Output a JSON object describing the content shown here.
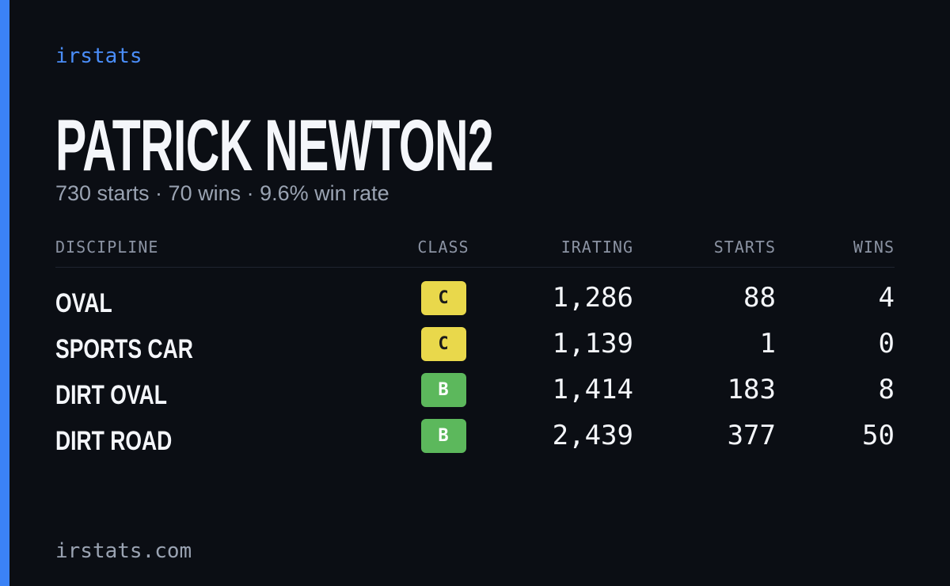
{
  "header": {
    "brand": "irstats",
    "title": "PATRICK NEWTON2",
    "subtitle": "730 starts · 70 wins · 9.6% win rate"
  },
  "table": {
    "columns": [
      "DISCIPLINE",
      "CLASS",
      "IRATING",
      "STARTS",
      "WINS"
    ],
    "rows": [
      [
        "OVAL",
        "C",
        "1,286",
        "88",
        "4"
      ],
      [
        "SPORTS CAR",
        "C",
        "1,139",
        "1",
        "0"
      ],
      [
        "DIRT OVAL",
        "B",
        "1,414",
        "183",
        "8"
      ],
      [
        "DIRT ROAD",
        "B",
        "2,439",
        "377",
        "50"
      ]
    ],
    "badge_colors": [
      {
        "background": "#e9d84b",
        "text": "#1a1a1a"
      },
      {
        "background": "#e9d84b",
        "text": "#1a1a1a"
      },
      {
        "background": "#5cb85c",
        "text": "#ffffff"
      },
      {
        "background": "#5cb85c",
        "text": "#ffffff"
      }
    ]
  },
  "footer": {
    "site": "irstats.com"
  }
}
